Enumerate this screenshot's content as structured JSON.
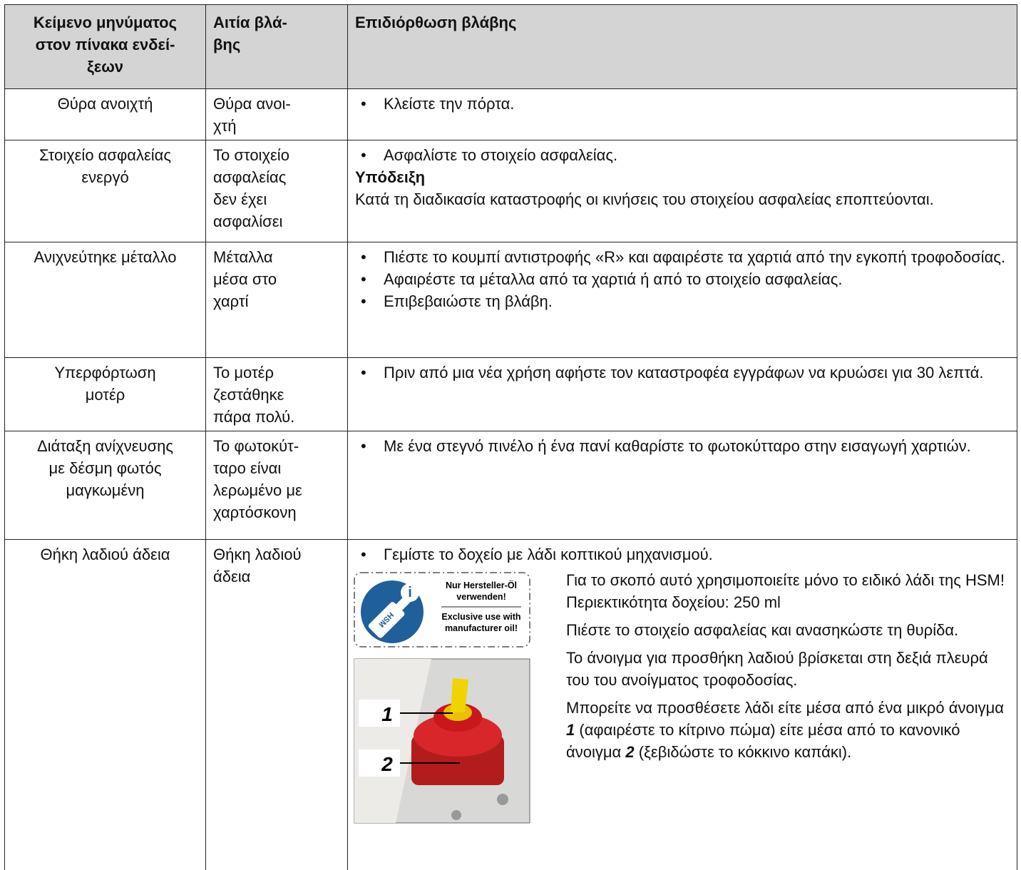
{
  "table": {
    "header": [
      "Κείμενο μηνύματος\nστον πίνακα ενδεί-\nξεων",
      "Αιτία βλά-\nβης",
      "Επιδιόρθωση βλάβης"
    ],
    "rows": [
      {
        "message": "Θύρα ανοιχτή",
        "cause": "Θύρα ανοι-\nχτή",
        "remedy": {
          "bullets": [
            "Κλείστε την πόρτα."
          ]
        }
      },
      {
        "message": "Στοιχείο ασφαλείας\nενεργό",
        "cause": "Το στοιχείο\nασφαλείας\nδεν έχει\nασφαλίσει",
        "remedy": {
          "bullets": [
            "Ασφαλίστε το στοιχείο ασφαλείας."
          ],
          "note_title": "Υπόδειξη",
          "note_text": "Κατά τη διαδικασία καταστροφής οι κινήσεις του στοιχείου ασφαλείας εποπτεύονται."
        }
      },
      {
        "message": "Ανιχνεύτηκε μέταλλο",
        "cause": "Μέταλλα\nμέσα στο\nχαρτί",
        "remedy": {
          "bullets": [
            "Πιέστε το κουμπί αντιστροφής «R» και αφαιρέστε τα χαρτιά από την εγκοπή τροφοδοσίας.",
            "Αφαιρέστε τα μέταλλα από τα χαρτιά ή από το στοιχείο ασφαλείας.",
            "Επιβεβαιώστε τη βλάβη."
          ]
        }
      },
      {
        "message": "Υπερφόρτωση\nμοτέρ",
        "cause": "Το μοτέρ\nζεστάθηκε\nπάρα πολύ.",
        "remedy": {
          "bullets": [
            "Πριν από μια νέα χρήση αφήστε τον καταστροφέα εγγράφων να κρυώσει για 30 λεπτά."
          ]
        }
      },
      {
        "message": "Διάταξη ανίχνευσης\nμε δέσμη φωτός\nμαγκωμένη",
        "cause": "Το φωτοκύτ-\nταρο είναι\nλερωμένο με\nχαρτόσκονη",
        "remedy": {
          "bullets": [
            "Με ένα στεγνό πινέλο ή ένα πανί καθαρίστε το φωτοκύτταρο στην εισαγωγή χαρτιών."
          ]
        }
      },
      {
        "message": "Θήκη λαδιού άδεια",
        "cause": "Θήκη λαδιού\nάδεια",
        "remedy": {
          "bullets": [
            "Γεμίστε το δοχείο με λάδι κοπτικού μηχανισμού."
          ],
          "paragraphs": [
            [
              "Για το σκοπό αυτό χρησιμοποιείτε μόνο το ειδικό λάδι της HSM!\nΠεριεκτικότητα δοχείου: 250 ml"
            ],
            [
              "Πιέστε το στοιχείο ασφαλείας και ανασηκώστε τη θυρίδα."
            ],
            [
              "Το άνοιγμα για προσθήκη λαδιού βρίσκεται στη δεξιά πλευρά του του ανοίγματος τροφοδοσίας."
            ],
            [
              "Μπορείτε να προσθέσετε λάδι είτε μέσα από ένα μικρό άνοιγμα ",
              "1",
              " (αφαιρέστε το κίτρινο πώμα) είτε μέσα από το κανονικό άνοιγμα ",
              "2",
              " (ξεβιδώστε το κόκκινο καπάκι)."
            ]
          ]
        }
      }
    ]
  },
  "sticker": {
    "german": [
      "Nur Hersteller-Öl",
      "verwenden!"
    ],
    "english": [
      "Exclusive use with",
      "manufacturer oil!"
    ],
    "bottle": "HSM"
  },
  "photo": {
    "labels": [
      "1",
      "2"
    ]
  }
}
